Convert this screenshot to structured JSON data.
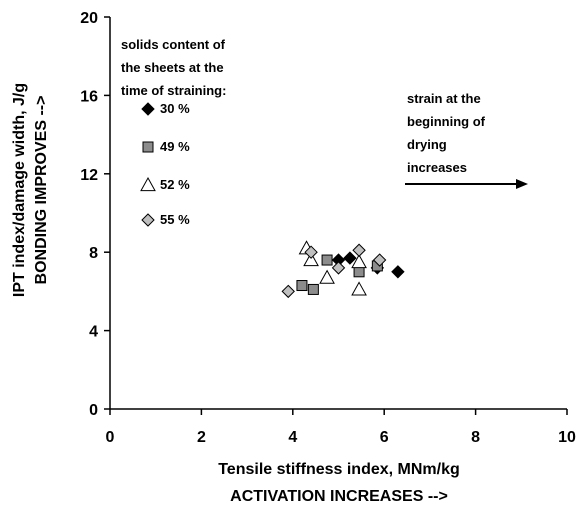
{
  "chart_data": {
    "type": "scatter",
    "xlabel": "Tensile stiffness index, MNm/kg",
    "xlabel_line2": "ACTIVATION INCREASES -->",
    "ylabel": "IPT index/damage width, J/g",
    "ylabel_line2": "BONDING IMPROVES -->",
    "xlim": [
      0,
      10
    ],
    "ylim": [
      0,
      20
    ],
    "xticks": [
      "0",
      "2",
      "4",
      "6",
      "8",
      "10"
    ],
    "yticks": [
      "0",
      "4",
      "8",
      "12",
      "16",
      "20"
    ],
    "grid": false,
    "legend_title": [
      "solids content of",
      "the sheets at the",
      "time of straining:"
    ],
    "legend_position": "top-left",
    "annotation": {
      "lines": [
        "strain at the",
        "beginning of",
        "drying",
        "increases"
      ],
      "arrow": "right"
    },
    "series": [
      {
        "name": "30 %",
        "marker": "diamond",
        "color": "#000000",
        "x": [
          5.0,
          5.25,
          5.85,
          6.3
        ],
        "y": [
          7.6,
          7.7,
          7.2,
          7.0
        ]
      },
      {
        "name": "49 %",
        "marker": "square",
        "color": "#8c8c8c",
        "x": [
          4.2,
          4.45,
          4.75,
          5.45,
          5.85
        ],
        "y": [
          6.3,
          6.1,
          7.6,
          7.0,
          7.3
        ]
      },
      {
        "name": "52 %",
        "marker": "triangle",
        "color": "#ffffff",
        "x": [
          4.3,
          4.4,
          4.75,
          5.45,
          5.45
        ],
        "y": [
          8.2,
          7.6,
          6.7,
          6.1,
          7.5
        ]
      },
      {
        "name": "55 %",
        "marker": "diamond",
        "color": "#bfbfbf",
        "x": [
          3.9,
          4.4,
          5.0,
          5.45,
          5.9
        ],
        "y": [
          6.0,
          8.0,
          7.2,
          8.1,
          7.6
        ]
      }
    ]
  }
}
